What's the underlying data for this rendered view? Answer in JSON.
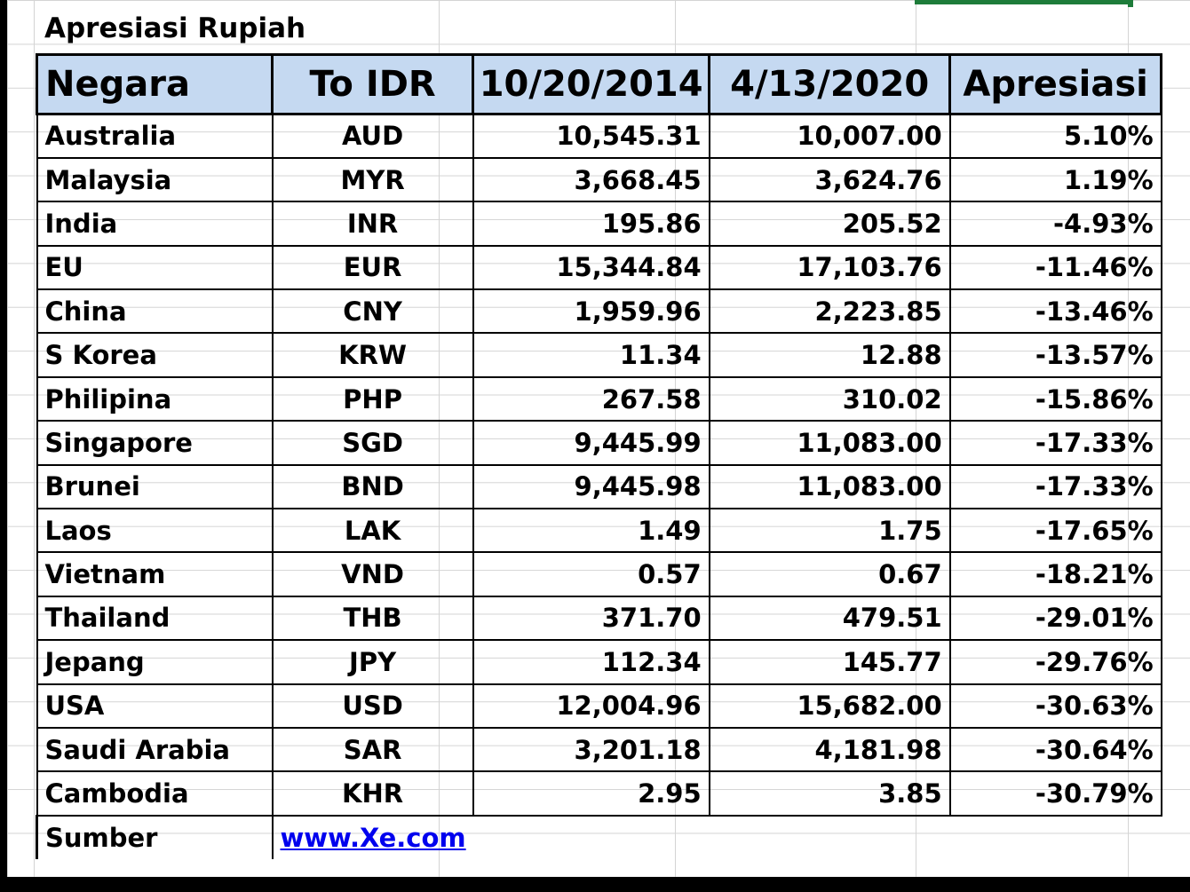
{
  "title": "Apresiasi Rupiah",
  "header": {
    "negara": "Negara",
    "to_idr": "To IDR",
    "date1": "10/20/2014",
    "date2": "4/13/2020",
    "apresiasi": "Apresiasi"
  },
  "rows": [
    {
      "country": "Australia",
      "code": "AUD",
      "v2014": "10,545.31",
      "v2020": "10,007.00",
      "appr": "5.10%"
    },
    {
      "country": "Malaysia",
      "code": "MYR",
      "v2014": "3,668.45",
      "v2020": "3,624.76",
      "appr": "1.19%"
    },
    {
      "country": "India",
      "code": "INR",
      "v2014": "195.86",
      "v2020": "205.52",
      "appr": "-4.93%"
    },
    {
      "country": "EU",
      "code": "EUR",
      "v2014": "15,344.84",
      "v2020": "17,103.76",
      "appr": "-11.46%"
    },
    {
      "country": "China",
      "code": "CNY",
      "v2014": "1,959.96",
      "v2020": "2,223.85",
      "appr": "-13.46%"
    },
    {
      "country": "S Korea",
      "code": "KRW",
      "v2014": "11.34",
      "v2020": "12.88",
      "appr": "-13.57%"
    },
    {
      "country": "Philipina",
      "code": "PHP",
      "v2014": "267.58",
      "v2020": "310.02",
      "appr": "-15.86%"
    },
    {
      "country": "Singapore",
      "code": "SGD",
      "v2014": "9,445.99",
      "v2020": "11,083.00",
      "appr": "-17.33%"
    },
    {
      "country": "Brunei",
      "code": "BND",
      "v2014": "9,445.98",
      "v2020": "11,083.00",
      "appr": "-17.33%"
    },
    {
      "country": "Laos",
      "code": "LAK",
      "v2014": "1.49",
      "v2020": "1.75",
      "appr": "-17.65%"
    },
    {
      "country": "Vietnam",
      "code": "VND",
      "v2014": "0.57",
      "v2020": "0.67",
      "appr": "-18.21%"
    },
    {
      "country": "Thailand",
      "code": "THB",
      "v2014": "371.70",
      "v2020": "479.51",
      "appr": "-29.01%"
    },
    {
      "country": "Jepang",
      "code": "JPY",
      "v2014": "112.34",
      "v2020": "145.77",
      "appr": "-29.76%"
    },
    {
      "country": "USA",
      "code": "USD",
      "v2014": "12,004.96",
      "v2020": "15,682.00",
      "appr": "-30.63%"
    },
    {
      "country": "Saudi Arabia",
      "code": "SAR",
      "v2014": "3,201.18",
      "v2020": "4,181.98",
      "appr": "-30.64%"
    },
    {
      "country": "Cambodia",
      "code": "KHR",
      "v2014": "2.95",
      "v2020": "3.85",
      "appr": "-30.79%"
    }
  ],
  "source": {
    "label": "Sumber",
    "link": "www.Xe.com"
  },
  "colors": {
    "header_fill": "#c5d9f1",
    "gridline": "#d4d4d4",
    "selection": "#1e7c3a",
    "link": "#0000ee"
  }
}
